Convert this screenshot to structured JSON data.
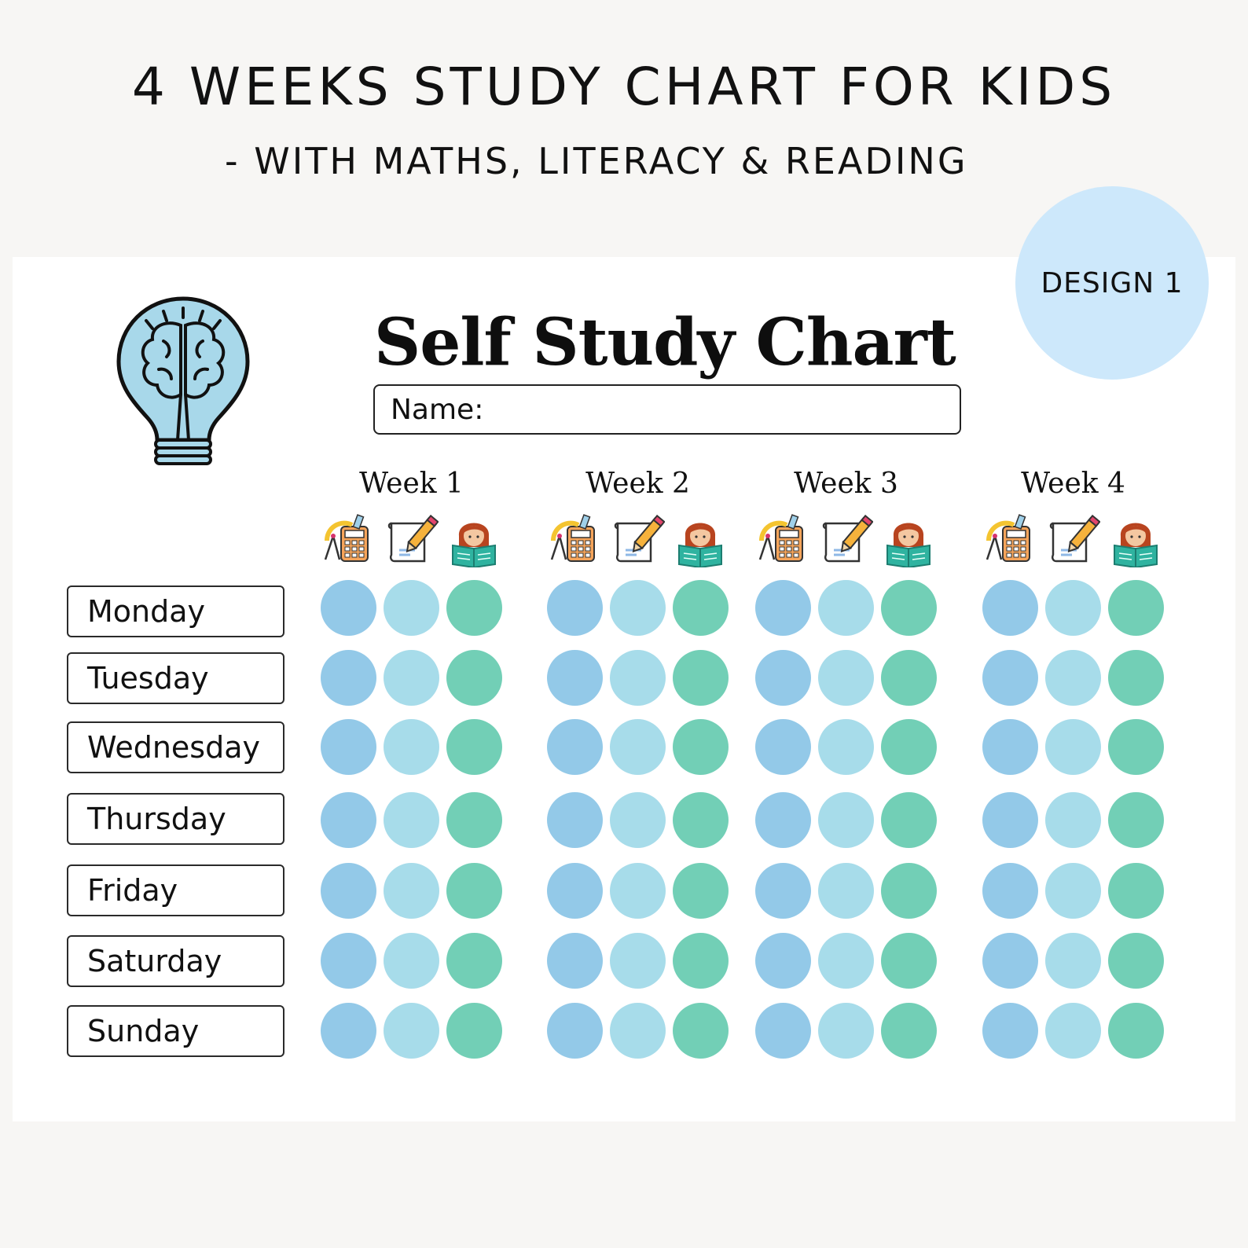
{
  "banner": {
    "headline": "4 WEEKS STUDY CHART FOR KIDS",
    "subline": "- WITH MATHS, LITERACY & READING",
    "badge": "DESIGN 1"
  },
  "sheet": {
    "title": "Self Study Chart",
    "name_label": "Name:",
    "weeks": [
      "Week 1",
      "Week 2",
      "Week 3",
      "Week 4"
    ],
    "subjects": [
      "maths-icon",
      "literacy-icon",
      "reading-icon"
    ],
    "days": [
      "Monday",
      "Tuesday",
      "Wednesday",
      "Thursday",
      "Friday",
      "Saturday",
      "Sunday"
    ],
    "colors": {
      "maths": "#93c9e8",
      "literacy": "#a7dcea",
      "reading": "#72cfb6",
      "badge": "#cde8fb",
      "bulb": "#a8d8ea"
    }
  }
}
